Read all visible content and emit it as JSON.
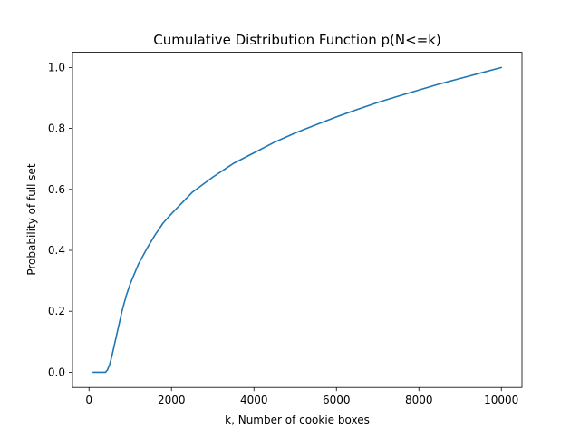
{
  "chart_data": {
    "type": "line",
    "title": "Cumulative Distribution Function p(N<=k)",
    "xlabel": "k, Number of cookie boxes",
    "ylabel": "Probability of full set",
    "xlim": [
      -400,
      10500
    ],
    "ylim": [
      -0.05,
      1.05
    ],
    "xticks": [
      0,
      2000,
      4000,
      6000,
      8000,
      10000
    ],
    "yticks": [
      0.0,
      0.2,
      0.4,
      0.6,
      0.8,
      1.0
    ],
    "xtick_labels": [
      "0",
      "2000",
      "4000",
      "6000",
      "8000",
      "10000"
    ],
    "ytick_labels": [
      "0.0",
      "0.2",
      "0.4",
      "0.6",
      "0.8",
      "1.0"
    ],
    "grid": false,
    "legend": "none",
    "series": [
      {
        "color": "#1f77b4",
        "x": [
          100,
          200,
          300,
          400,
          450,
          500,
          550,
          600,
          650,
          700,
          750,
          800,
          900,
          1000,
          1200,
          1400,
          1600,
          1800,
          2000,
          2500,
          3000,
          3500,
          4000,
          4500,
          5000,
          5500,
          6000,
          6500,
          7000,
          7500,
          8000,
          8500,
          9000,
          9500,
          10000
        ],
        "y": [
          0.0,
          0.0,
          0.0,
          0.0,
          0.008,
          0.025,
          0.05,
          0.08,
          0.11,
          0.14,
          0.17,
          0.2,
          0.25,
          0.29,
          0.355,
          0.405,
          0.45,
          0.49,
          0.52,
          0.59,
          0.64,
          0.685,
          0.72,
          0.755,
          0.785,
          0.812,
          0.838,
          0.862,
          0.885,
          0.906,
          0.926,
          0.946,
          0.964,
          0.982,
          1.0
        ]
      }
    ]
  }
}
